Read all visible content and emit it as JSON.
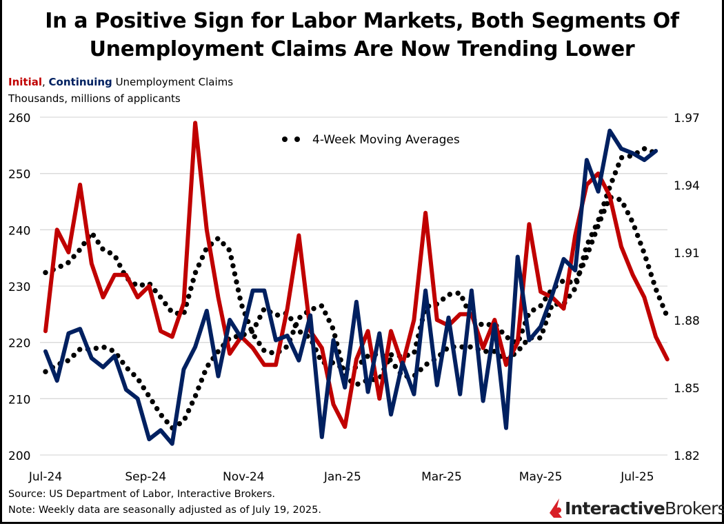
{
  "title_line1": "In a Positive Sign for Labor Markets, Both Segments Of",
  "title_line2": "Unemployment Claims Are Now Trending Lower",
  "subtitle": {
    "initial": "Initial",
    "sep": ",",
    "continuing": "Continuing",
    "rest": "Unemployment Claims",
    "units": "Thousands, millions of applicants"
  },
  "footer": {
    "source": "Source: US Department of Labor, Interactive Brokers.",
    "note": "Note: Weekly data are seasonally adjusted as of July 19, 2025."
  },
  "logo": {
    "bold": "Interactive",
    "regular": "Brokers"
  },
  "colors": {
    "initial": "#c00000",
    "continuing": "#002060",
    "moving_average": "#000000",
    "grid": "#d9d9d9"
  },
  "chart_data": {
    "type": "line",
    "xlabel": "",
    "ylabel": "",
    "x_tick_labels": [
      "Jul-24",
      "Sep-24",
      "Nov-24",
      "Jan-25",
      "Mar-25",
      "May-25",
      "Jul-25"
    ],
    "y_left": {
      "ticks": [
        200,
        210,
        220,
        230,
        240,
        250,
        260
      ],
      "ylim": [
        200,
        260
      ]
    },
    "y_right": {
      "ticks": [
        "1.82",
        "1.85",
        "1.88",
        "1.91",
        "1.94",
        "1.97"
      ],
      "ylim": [
        1.82,
        1.97
      ]
    },
    "grid": true,
    "legend": {
      "label": "4-Week Moving Averages",
      "placement": "top-center"
    },
    "series": [
      {
        "name": "Initial",
        "axis": "left",
        "style": "solid",
        "values": [
          222,
          240,
          236,
          248,
          234,
          228,
          232,
          232,
          228,
          230,
          222,
          221,
          227,
          259,
          240,
          228,
          218,
          221,
          219,
          216,
          216,
          226,
          239,
          222,
          219,
          209,
          205,
          217,
          222,
          210,
          222,
          216,
          224,
          243,
          224,
          223,
          225,
          225,
          219,
          224,
          216,
          220,
          241,
          229,
          228,
          226,
          239,
          248,
          250,
          246,
          237,
          232,
          228,
          221,
          217
        ]
      },
      {
        "name": "Continuing",
        "axis": "right",
        "style": "solid",
        "values": [
          1.866,
          1.853,
          1.874,
          1.876,
          1.863,
          1.859,
          1.864,
          1.849,
          1.845,
          1.827,
          1.831,
          1.825,
          1.858,
          1.868,
          1.884,
          1.855,
          1.88,
          1.872,
          1.893,
          1.893,
          1.871,
          1.873,
          1.862,
          1.882,
          1.828,
          1.871,
          1.85,
          1.888,
          1.848,
          1.874,
          1.838,
          1.861,
          1.847,
          1.893,
          1.851,
          1.881,
          1.847,
          1.893,
          1.844,
          1.878,
          1.832,
          1.908,
          1.871,
          1.877,
          1.891,
          1.907,
          1.902,
          1.951,
          1.937,
          1.964,
          1.956,
          1.954,
          1.951,
          1.955
        ]
      },
      {
        "name": "4-Week Moving Averages",
        "axis": "left",
        "style": "dotted",
        "values": [
          232.4,
          233.2,
          234.2,
          236.5,
          239.5,
          236.5,
          235.5,
          231.5,
          230,
          230.5,
          228,
          225.3,
          225,
          232.3,
          236.8,
          238.5,
          236.3,
          226.8,
          221.5,
          218.5,
          218,
          219.3,
          224.3,
          225.8,
          226.5,
          222.3,
          213.8,
          212.5,
          213.3,
          213.5,
          217.8,
          217.5,
          218,
          226.3,
          226.8,
          228.5,
          228.8,
          224.3,
          223,
          223.3,
          221,
          219.8,
          225.3,
          226.5,
          229.5,
          231,
          230.5,
          235.3,
          240.8,
          245.8,
          245.3,
          241.3,
          235.8,
          229.5,
          224.5
        ]
      },
      {
        "name": "4-Week Moving Averages",
        "axis": "right",
        "style": "dotted",
        "values": [
          1.857,
          1.86,
          1.862,
          1.867,
          1.867,
          1.868,
          1.866,
          1.859,
          1.854,
          1.846,
          1.838,
          1.832,
          1.835,
          1.846,
          1.859,
          1.866,
          1.872,
          1.873,
          1.875,
          1.885,
          1.882,
          1.883,
          1.875,
          1.872,
          1.861,
          1.861,
          1.858,
          1.859,
          1.864,
          1.865,
          1.862,
          1.855,
          1.855,
          1.86,
          1.863,
          1.868,
          1.868,
          1.868,
          1.866,
          1.866,
          1.862,
          1.866,
          1.872,
          1.872,
          1.887,
          1.887,
          1.894,
          1.913,
          1.924,
          1.939,
          1.952,
          1.953,
          1.956,
          1.954
        ]
      }
    ]
  }
}
